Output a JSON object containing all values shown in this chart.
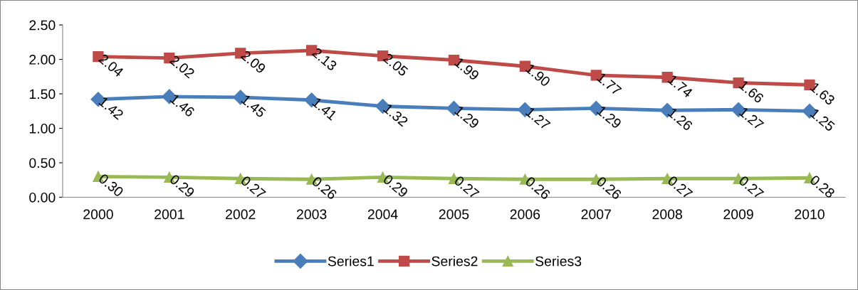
{
  "chart_data": {
    "type": "line",
    "categories": [
      "2000",
      "2001",
      "2002",
      "2003",
      "2004",
      "2005",
      "2006",
      "2007",
      "2008",
      "2009",
      "2010"
    ],
    "series": [
      {
        "name": "Series1",
        "color": "#4a7ebb",
        "marker": "diamond",
        "values": [
          1.42,
          1.46,
          1.45,
          1.41,
          1.32,
          1.29,
          1.27,
          1.29,
          1.26,
          1.27,
          1.25
        ],
        "value_labels": [
          "1.42",
          "1.46",
          "1.45",
          "1.41",
          "1.32",
          "1.29",
          "1.27",
          "1.29",
          "1.26",
          "1.27",
          "1.25"
        ]
      },
      {
        "name": "Series2",
        "color": "#be4b48",
        "marker": "square",
        "values": [
          2.04,
          2.02,
          2.09,
          2.13,
          2.05,
          1.99,
          1.9,
          1.77,
          1.74,
          1.66,
          1.63
        ],
        "value_labels": [
          "2.04",
          "2.02",
          "2.09",
          "2.13",
          "2.05",
          "1.99",
          "1.90",
          "1.77",
          "1.74",
          "1.66",
          "1.63"
        ]
      },
      {
        "name": "Series3",
        "color": "#98b954",
        "marker": "triangle",
        "values": [
          0.3,
          0.29,
          0.27,
          0.26,
          0.29,
          0.27,
          0.26,
          0.26,
          0.27,
          0.27,
          0.28
        ],
        "value_labels": [
          "0.30",
          "0.29",
          "0.27",
          "0.26",
          "0.29",
          "0.27",
          "0.26",
          "0.26",
          "0.27",
          "0.27",
          "0.28"
        ]
      }
    ],
    "ylim": [
      0,
      2.5
    ],
    "yticks": [
      {
        "value": 0,
        "label": "0.00"
      },
      {
        "value": 0.5,
        "label": "0.50"
      },
      {
        "value": 1,
        "label": "1.00"
      },
      {
        "value": 1.5,
        "label": "1.50"
      },
      {
        "value": 2,
        "label": "2.00"
      },
      {
        "value": 2.5,
        "label": "2.50"
      }
    ],
    "grid": false,
    "legend": "bottom",
    "line_style": "solid"
  }
}
